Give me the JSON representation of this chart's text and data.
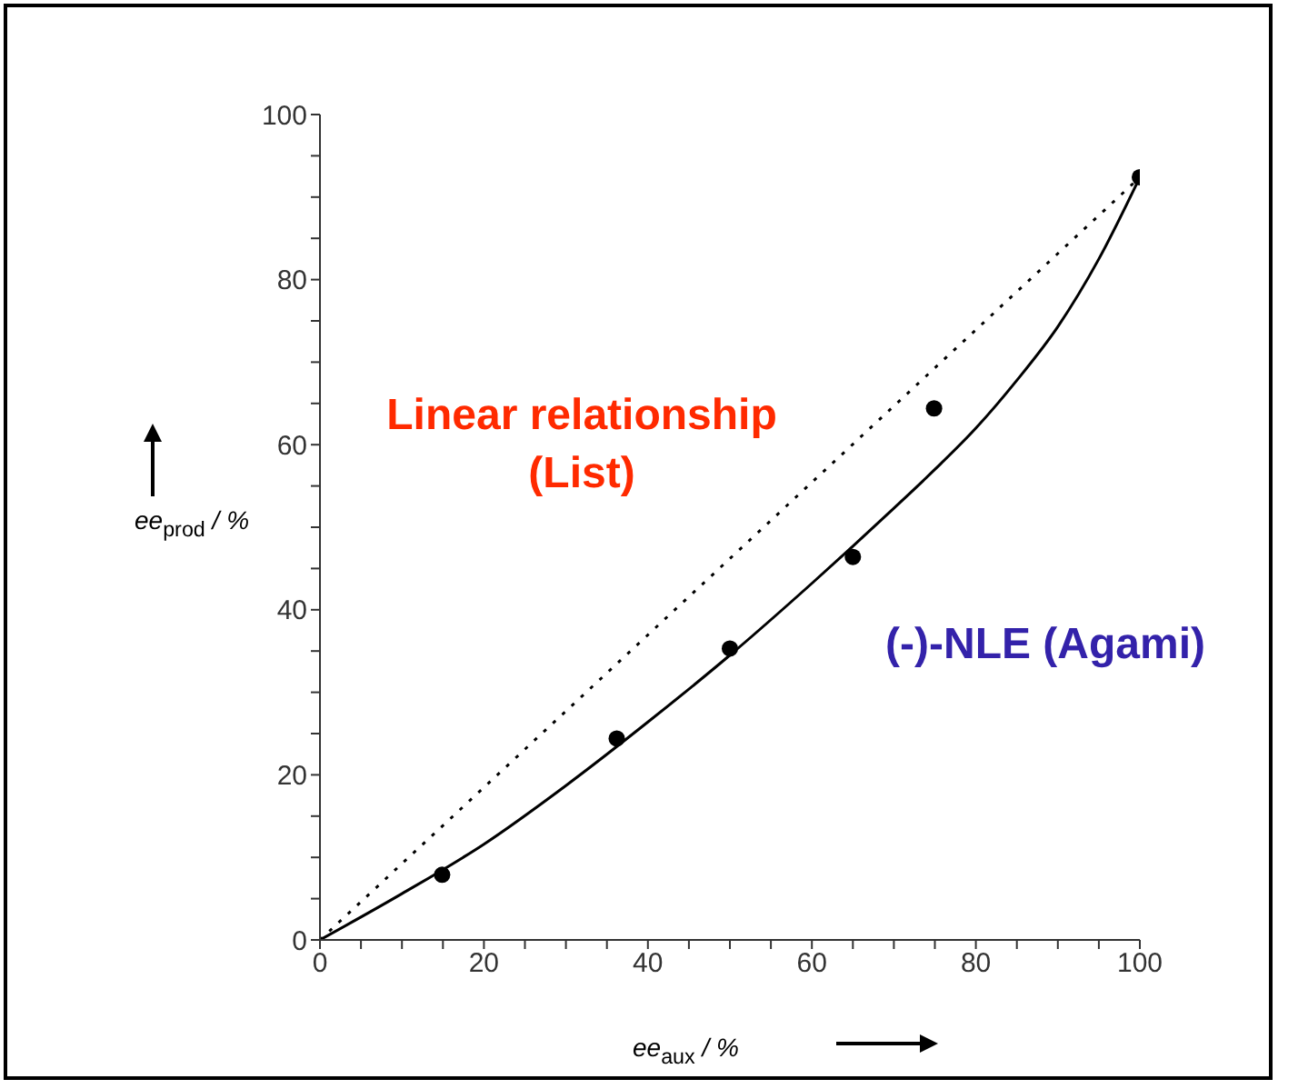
{
  "chart_data": {
    "type": "scatter",
    "xlabel": "ee$_{aux}$ / %",
    "ylabel": "ee$_{prod}$ / %",
    "xlim": [
      0,
      100
    ],
    "ylim": [
      0,
      100
    ],
    "xticks": [
      0,
      {
        "value": 5,
        "label": null
      },
      {
        "value": 10,
        "label": null
      },
      {
        "value": 15,
        "label": null
      },
      20,
      {
        "value": 25,
        "label": null
      },
      {
        "value": 30,
        "label": null
      },
      {
        "value": 35,
        "label": null
      },
      40,
      {
        "value": 45,
        "label": null
      },
      {
        "value": 50,
        "label": null
      },
      {
        "value": 55,
        "label": null
      },
      60,
      {
        "value": 65,
        "label": null
      },
      {
        "value": 70,
        "label": null
      },
      {
        "value": 75,
        "label": null
      },
      80,
      {
        "value": 85,
        "label": null
      },
      {
        "value": 90,
        "label": null
      },
      {
        "value": 95,
        "label": null
      },
      100
    ],
    "yticks": [
      0,
      {
        "value": 5,
        "label": null
      },
      {
        "value": 10,
        "label": null
      },
      {
        "value": 15,
        "label": null
      },
      20,
      {
        "value": 25,
        "label": null
      },
      {
        "value": 30,
        "label": null
      },
      {
        "value": 35,
        "label": null
      },
      40,
      {
        "value": 45,
        "label": null
      },
      {
        "value": 50,
        "label": null
      },
      {
        "value": 55,
        "label": null
      },
      60,
      {
        "value": 65,
        "label": null
      },
      {
        "value": 70,
        "label": null
      },
      {
        "value": 75,
        "label": null
      },
      80,
      {
        "value": 85,
        "label": null
      },
      {
        "value": 90,
        "label": null
      },
      {
        "value": 95,
        "label": null
      },
      100
    ],
    "series": [
      {
        "color": "#000000",
        "marker": "circle",
        "x": [
          14.9,
          36.2,
          50,
          65,
          74.9,
          100
        ],
        "values": [
          7.9,
          24.4,
          35.3,
          46.4,
          64.4,
          92.4
        ]
      },
      {
        "type": "line",
        "color": "#000000",
        "line_style": "dotted",
        "marker": "none",
        "x": [
          0,
          100
        ],
        "values": [
          0,
          92.4
        ]
      },
      {
        "type": "line",
        "color": "#000000",
        "line_style": "solid",
        "marker": "none",
        "x": [
          0,
          10,
          20,
          30,
          40,
          50,
          60,
          70,
          75,
          80,
          85,
          90,
          95,
          100
        ],
        "values": [
          0,
          5.6,
          11.6,
          18.7,
          26.4,
          34.5,
          43.2,
          52.3,
          57,
          62,
          67.8,
          74.3,
          82.5,
          92.4
        ]
      }
    ],
    "annotations": [
      "Linear relationship\n(List)",
      "(-)-NLE (Agami)"
    ]
  }
}
